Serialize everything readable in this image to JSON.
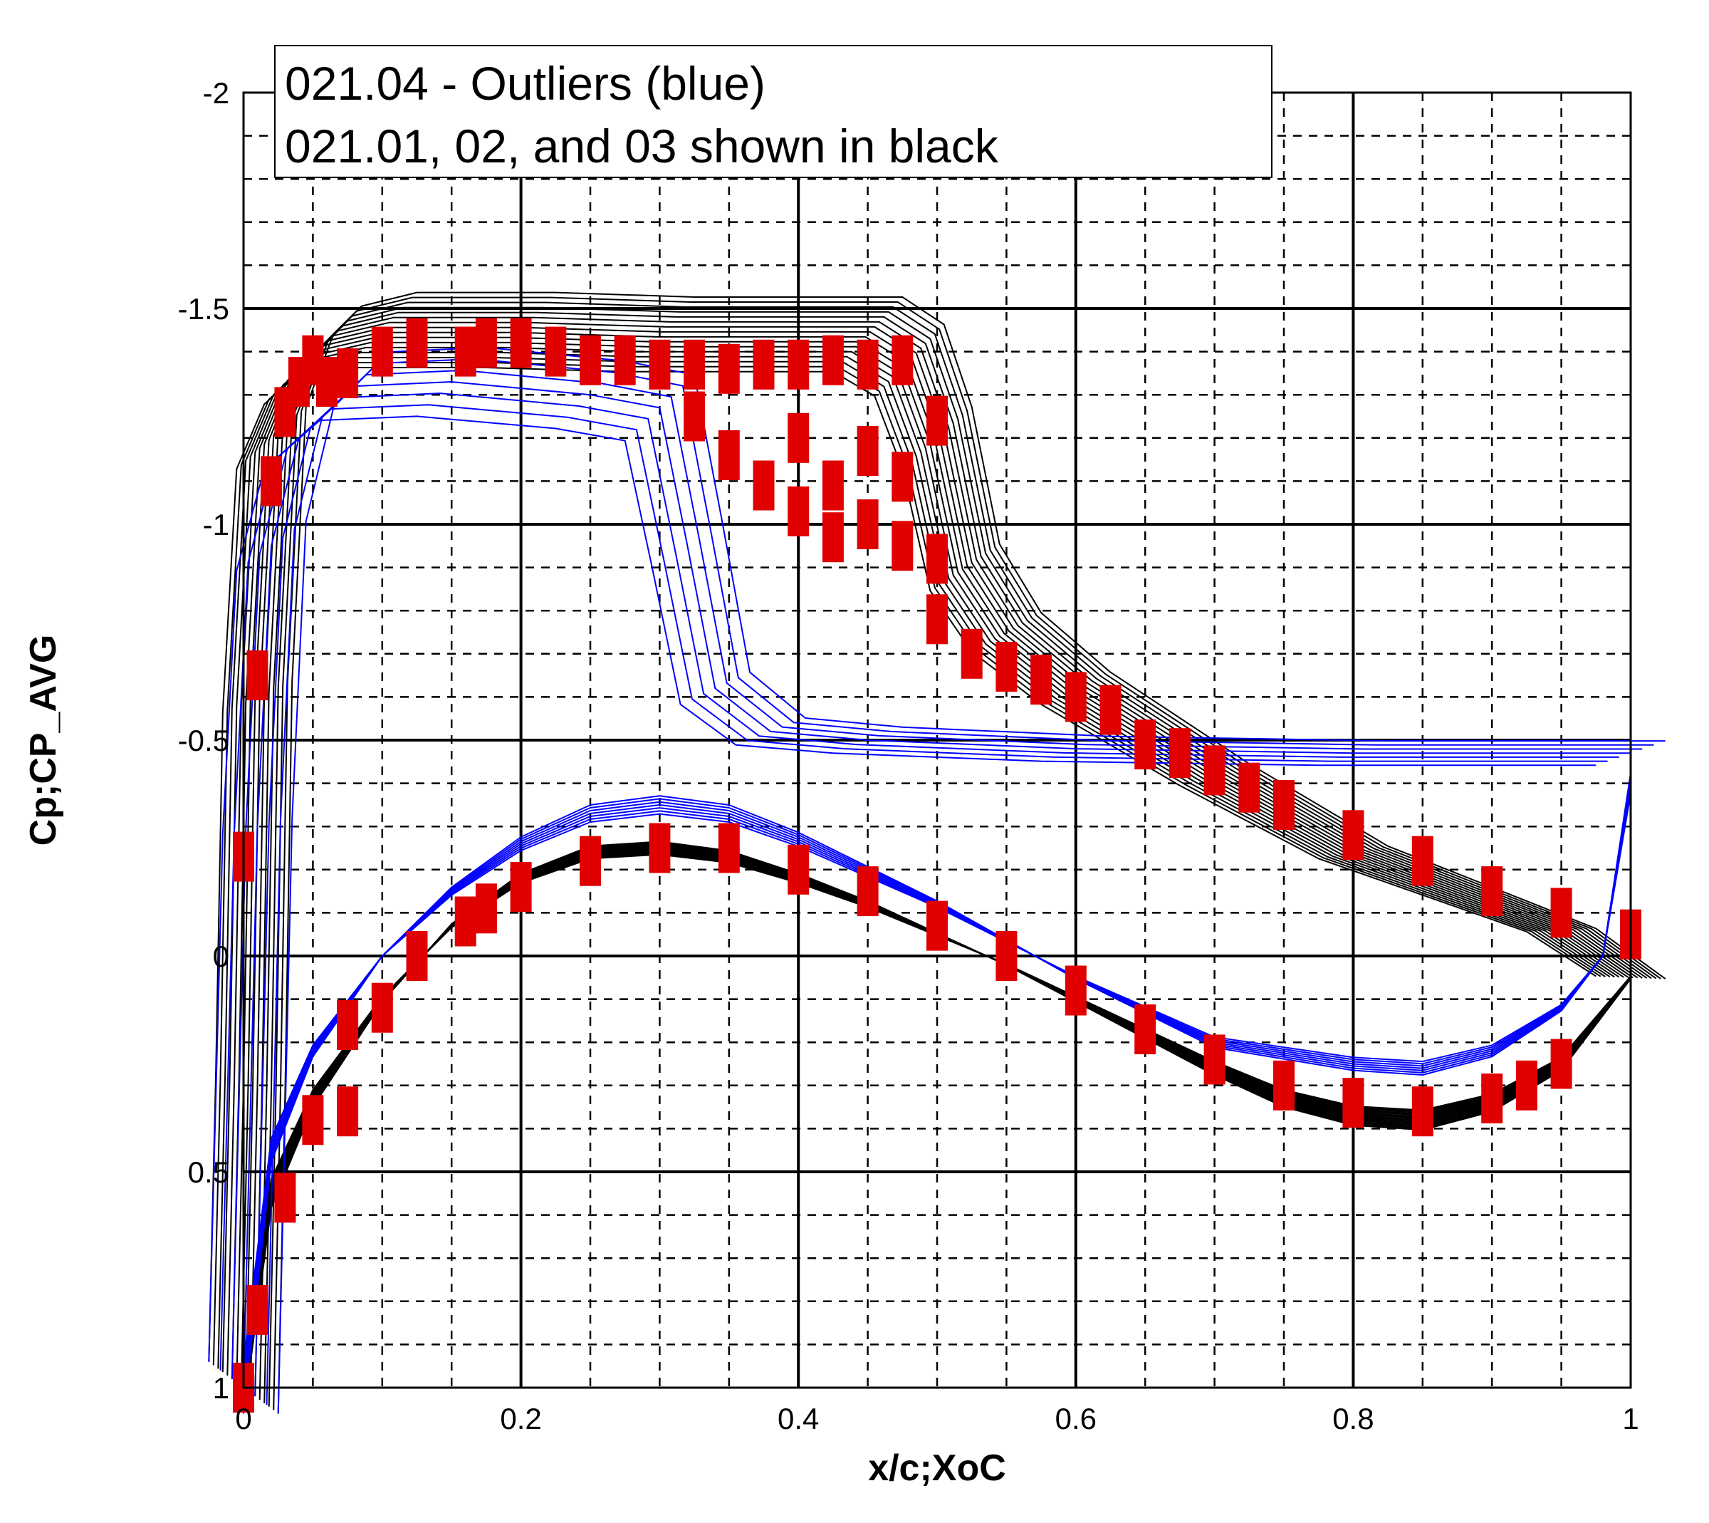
{
  "chart_data": {
    "type": "line",
    "xlabel": "x/c;XoC",
    "ylabel": "Cp;CP_AVG",
    "xlim": [
      0,
      1
    ],
    "ylim": [
      1,
      -2
    ],
    "y_axis_inverted": true,
    "grid": true,
    "x_ticks": [
      "0",
      "0.2",
      "0.4",
      "0.6",
      "0.8",
      "1"
    ],
    "x_tick_values": [
      0,
      0.2,
      0.4,
      0.6,
      0.8,
      1
    ],
    "y_ticks": [
      "-2",
      "-1.5",
      "-1",
      "-0.5",
      "0",
      "0.5",
      "1"
    ],
    "y_tick_values": [
      -2,
      -1.5,
      -1,
      -0.5,
      0,
      0.5,
      1
    ],
    "legend": {
      "lines": [
        "021.04 - Outliers (blue)",
        "021.01, 02, and 03 shown in black"
      ],
      "placement": "top-left"
    },
    "colors": {
      "blue_series": "#0000ff",
      "black_series": "#000000",
      "experiment": "#e00000"
    },
    "series": [
      {
        "group": "black-upper",
        "color": "#000000",
        "x": [
          0,
          0.005,
          0.01,
          0.02,
          0.04,
          0.06,
          0.1,
          0.2,
          0.3,
          0.4,
          0.45,
          0.48,
          0.5,
          0.52,
          0.55,
          0.6,
          0.7,
          0.8,
          0.9,
          0.95,
          1
        ],
        "y": [
          1.0,
          0.3,
          -0.6,
          -1.2,
          -1.36,
          -1.42,
          -1.45,
          -1.45,
          -1.44,
          -1.44,
          -1.44,
          -1.38,
          -1.2,
          -0.9,
          -0.75,
          -0.62,
          -0.42,
          -0.24,
          -0.12,
          -0.06,
          0.05
        ]
      },
      {
        "group": "black-lower",
        "color": "#000000",
        "x": [
          0,
          0.02,
          0.05,
          0.1,
          0.15,
          0.2,
          0.25,
          0.3,
          0.35,
          0.4,
          0.45,
          0.5,
          0.55,
          0.6,
          0.65,
          0.7,
          0.75,
          0.8,
          0.85,
          0.9,
          0.95,
          1
        ],
        "y": [
          1.0,
          0.55,
          0.33,
          0.1,
          -0.07,
          -0.18,
          -0.24,
          -0.25,
          -0.23,
          -0.18,
          -0.12,
          -0.05,
          0.02,
          0.1,
          0.18,
          0.26,
          0.33,
          0.37,
          0.38,
          0.34,
          0.25,
          0.05
        ]
      },
      {
        "group": "blue-upper",
        "color": "#0000ff",
        "x": [
          0,
          0.01,
          0.02,
          0.04,
          0.08,
          0.15,
          0.25,
          0.3,
          0.32,
          0.34,
          0.38,
          0.45,
          0.6,
          0.8,
          1
        ],
        "y": [
          1.0,
          -0.3,
          -0.95,
          -1.2,
          -1.32,
          -1.33,
          -1.3,
          -1.27,
          -0.95,
          -0.62,
          -0.52,
          -0.5,
          -0.48,
          -0.47,
          -0.47
        ]
      },
      {
        "group": "blue-lower",
        "color": "#0000ff",
        "x": [
          0,
          0.02,
          0.05,
          0.1,
          0.15,
          0.2,
          0.25,
          0.3,
          0.35,
          0.4,
          0.5,
          0.6,
          0.7,
          0.8,
          0.85,
          0.9,
          0.95,
          0.98,
          1
        ],
        "y": [
          1.0,
          0.45,
          0.22,
          0.0,
          -0.15,
          -0.26,
          -0.33,
          -0.35,
          -0.33,
          -0.27,
          -0.12,
          0.05,
          0.2,
          0.25,
          0.26,
          0.22,
          0.12,
          0.0,
          -0.4
        ]
      }
    ],
    "experiment": {
      "color": "#e00000",
      "marker": "square",
      "upper": {
        "x": [
          0.0,
          0.01,
          0.02,
          0.03,
          0.04,
          0.05,
          0.06,
          0.075,
          0.1,
          0.125,
          0.16,
          0.175,
          0.2,
          0.225,
          0.25,
          0.275,
          0.3,
          0.325,
          0.35,
          0.375,
          0.4,
          0.425,
          0.45,
          0.475,
          0.5,
          0.525,
          0.55,
          0.575,
          0.6,
          0.625,
          0.65,
          0.675,
          0.7,
          0.725,
          0.75,
          0.8,
          0.85,
          0.9,
          0.95,
          1.0
        ],
        "y": [
          -0.23,
          -0.65,
          -1.1,
          -1.26,
          -1.33,
          -1.38,
          -1.33,
          -1.35,
          -1.4,
          -1.42,
          -1.4,
          -1.42,
          -1.42,
          -1.4,
          -1.38,
          -1.38,
          -1.37,
          -1.37,
          -1.36,
          -1.37,
          -1.37,
          -1.38,
          -1.37,
          -1.38,
          -0.78,
          -0.7,
          -0.67,
          -0.64,
          -0.6,
          -0.57,
          -0.49,
          -0.47,
          -0.43,
          -0.39,
          -0.35,
          -0.28,
          -0.22,
          -0.15,
          -0.1,
          -0.05
        ]
      },
      "lower": {
        "x": [
          0.0,
          0.01,
          0.03,
          0.05,
          0.075,
          0.1,
          0.125,
          0.16,
          0.175,
          0.2,
          0.25,
          0.3,
          0.35,
          0.4,
          0.45,
          0.5,
          0.55,
          0.6,
          0.65,
          0.7,
          0.75,
          0.8,
          0.85,
          0.9,
          0.925,
          0.95
        ],
        "y": [
          1.0,
          0.82,
          0.56,
          0.38,
          0.16,
          0.12,
          0.0,
          -0.08,
          -0.11,
          -0.16,
          -0.22,
          -0.25,
          -0.25,
          -0.2,
          -0.15,
          -0.07,
          0.0,
          0.08,
          0.17,
          0.24,
          0.3,
          0.34,
          0.36,
          0.33,
          0.3,
          0.25
        ]
      },
      "separated": {
        "x": [
          0.325,
          0.35,
          0.375,
          0.4,
          0.4,
          0.425,
          0.425,
          0.45,
          0.45,
          0.475,
          0.475,
          0.5,
          0.5,
          0.075
        ],
        "y": [
          -1.25,
          -1.16,
          -1.09,
          -1.2,
          -1.03,
          -1.09,
          -0.97,
          -1.17,
          -1.0,
          -1.11,
          -0.95,
          -1.24,
          -0.92,
          0.36
        ]
      }
    }
  }
}
